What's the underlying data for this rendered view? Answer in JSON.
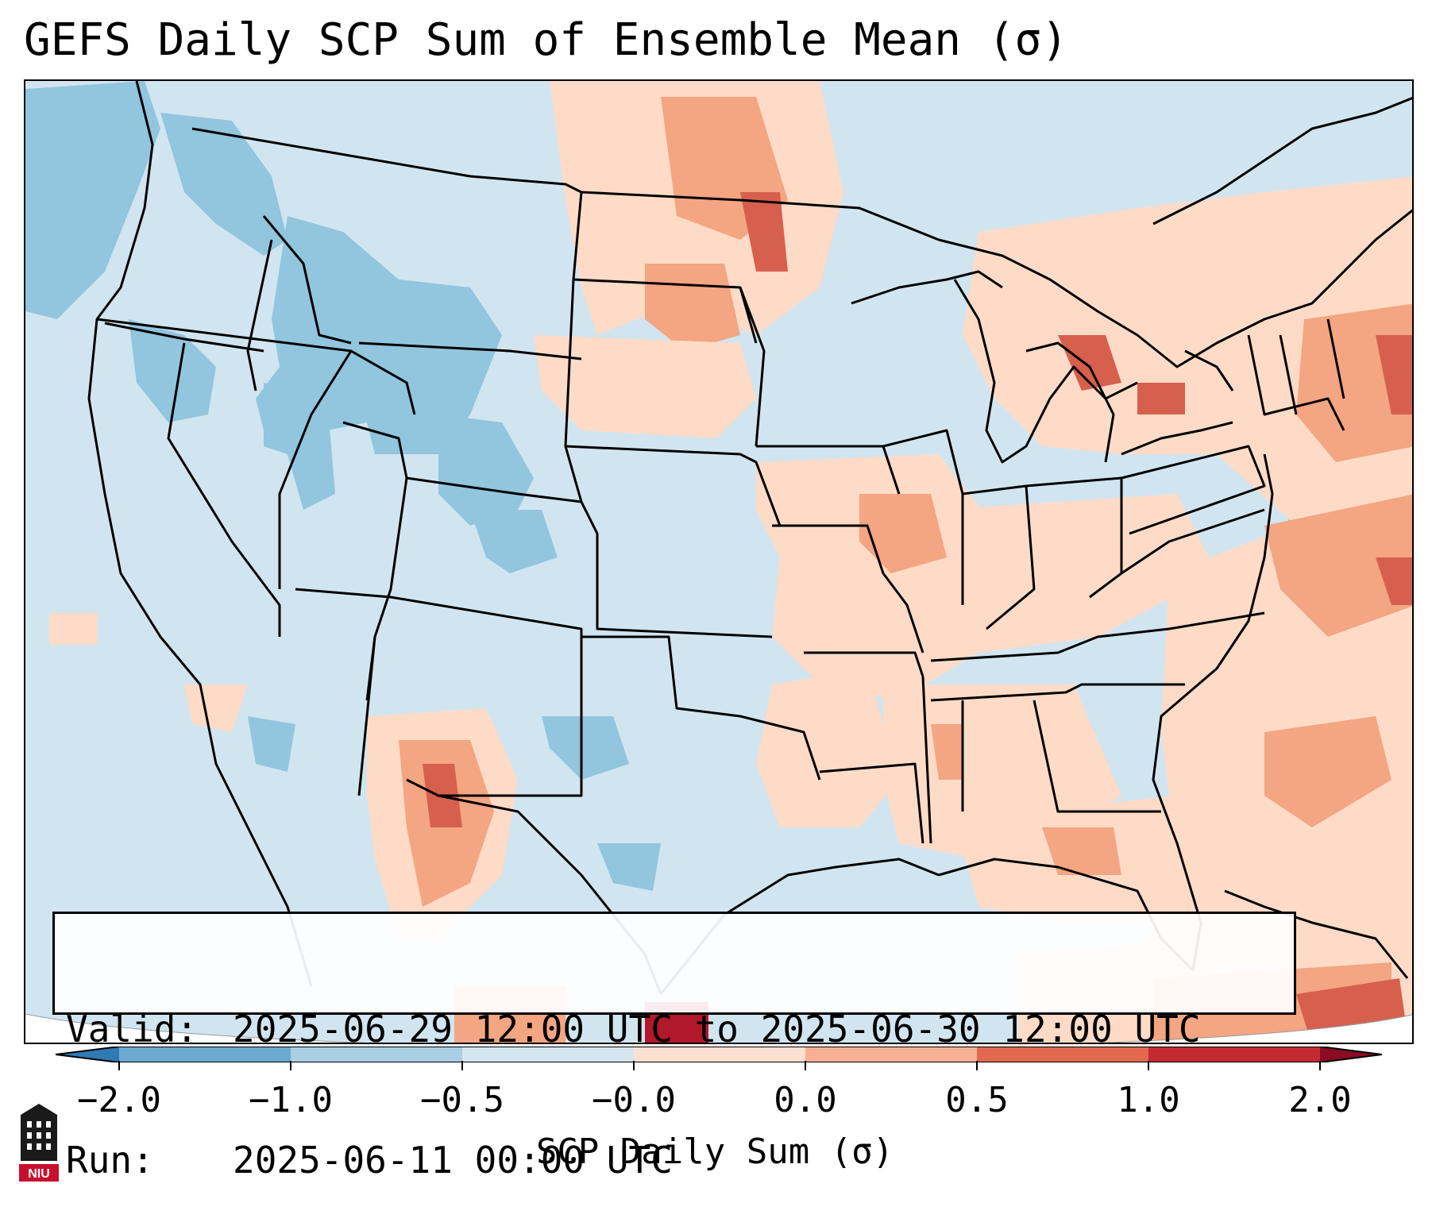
{
  "title": "GEFS Daily SCP Sum of Ensemble Mean (σ)",
  "infobox": {
    "valid_label": "Valid:",
    "valid_value": "2025-06-29 12:00 UTC to 2025-06-30 12:00 UTC",
    "run_label": "Run:",
    "run_value": "2025-06-11 00:00 UTC"
  },
  "colorbar": {
    "label": "SCP Daily Sum (σ)",
    "ticks": [
      "−2.0",
      "−1.0",
      "−0.5",
      "−0.0",
      "0.0",
      "0.5",
      "1.0",
      "2.0"
    ],
    "colors": [
      "#2f79b5",
      "#6ba9d1",
      "#a9cfe5",
      "#d6e6f1",
      "#fce0d0",
      "#f7b093",
      "#e2694f",
      "#c42a32",
      "#8b0a24"
    ]
  },
  "logo": {
    "text": "NIU",
    "color": "#c8102e"
  },
  "palette": {
    "neg_light": "#d1e5f0",
    "neg_mid": "#92c5de",
    "pos_light": "#fddbc7",
    "pos_mid": "#f4a582",
    "pos_dark": "#d6604d",
    "pos_darkest": "#b2182b"
  }
}
